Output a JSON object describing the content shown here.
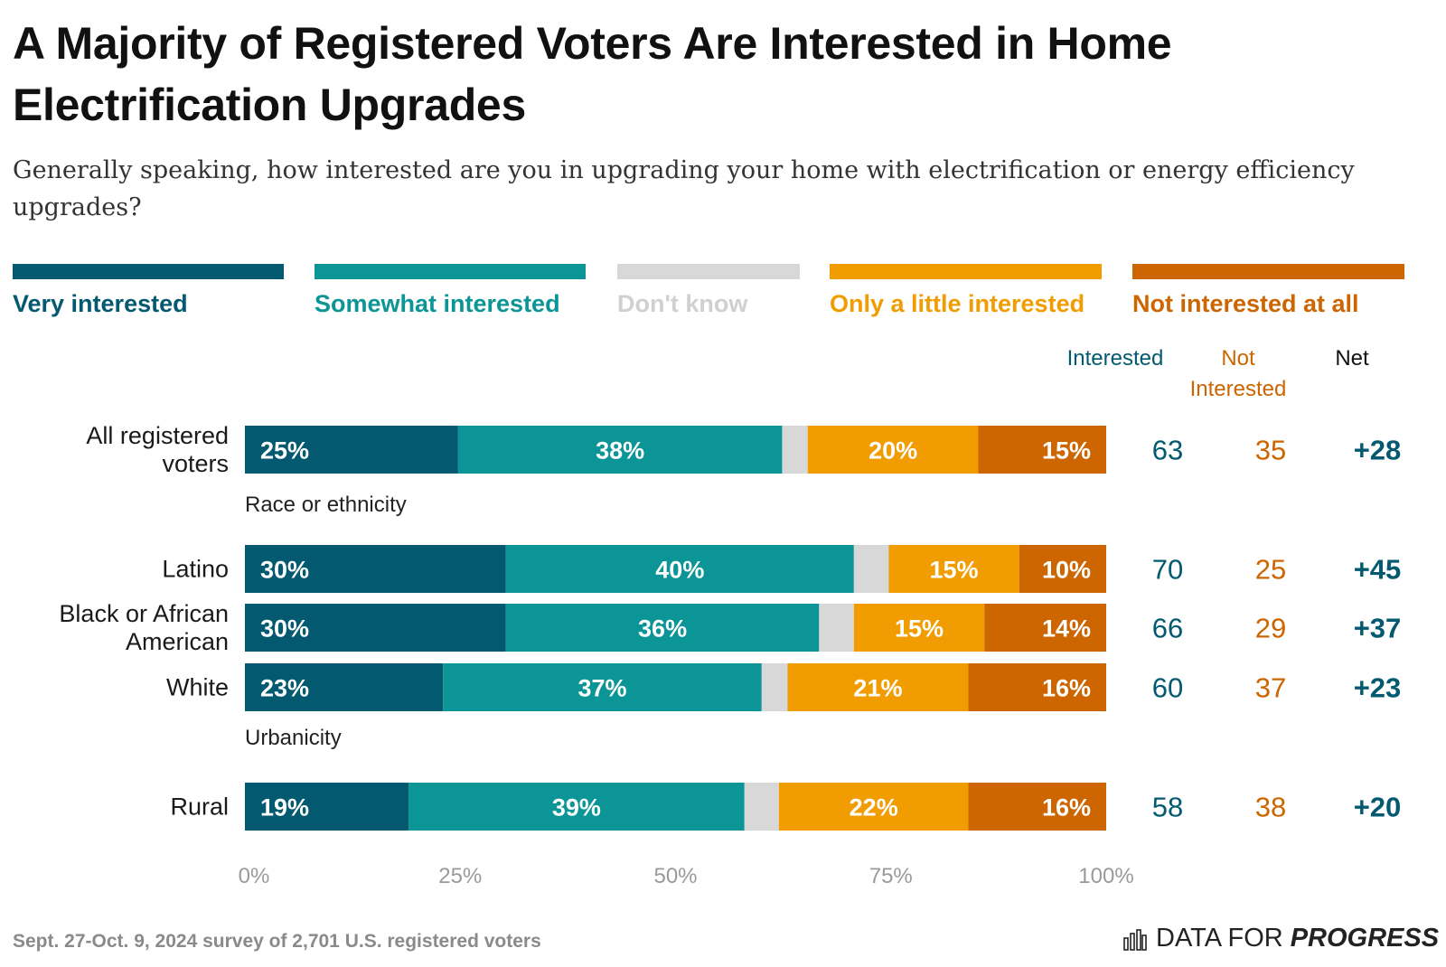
{
  "title": "A Majority of Registered Voters Are Interested in Home Electrification Upgrades",
  "subtitle": "Generally speaking, how interested are you in upgrading your home with electrification or energy efficiency upgrades?",
  "legend": [
    {
      "label": "Very interested",
      "color": "#035a70"
    },
    {
      "label": "Somewhat interested",
      "color": "#0c9596"
    },
    {
      "label": "Don't know",
      "color": "#d8d8d8"
    },
    {
      "label": "Only a little interested",
      "color": "#f19c00"
    },
    {
      "label": "Not interested at all",
      "color": "#cd6500"
    }
  ],
  "columns": {
    "interested": "Interested",
    "not_interested": "Not Interested",
    "net": "Net"
  },
  "groups": {
    "race": "Race or ethnicity",
    "urbanicity": "Urbanicity"
  },
  "footer": "Sept. 27-Oct. 9, 2024 survey of 2,701 U.S. registered voters",
  "brand": {
    "light": "DATA FOR",
    "strong": "PROGRESS",
    "icon": "bar-chart-logo-icon"
  },
  "chart_data": {
    "type": "bar",
    "orientation": "horizontal-stacked-100",
    "categories": [
      "All registered voters",
      "Latino",
      "Black or African American",
      "White",
      "Rural"
    ],
    "series": [
      {
        "name": "Very interested",
        "values": [
          25,
          30,
          30,
          23,
          19
        ],
        "labels": [
          "25%",
          "30%",
          "30%",
          "23%",
          "19%"
        ]
      },
      {
        "name": "Somewhat interested",
        "values": [
          38,
          40,
          36,
          37,
          39
        ],
        "labels": [
          "38%",
          "40%",
          "36%",
          "37%",
          "39%"
        ]
      },
      {
        "name": "Don't know",
        "values": [
          3,
          4,
          4,
          3,
          4
        ],
        "labels": [
          "",
          "",
          "",
          "",
          ""
        ]
      },
      {
        "name": "Only a little interested",
        "values": [
          20,
          15,
          15,
          21,
          22
        ],
        "labels": [
          "20%",
          "15%",
          "15%",
          "21%",
          "22%"
        ]
      },
      {
        "name": "Not interested at all",
        "values": [
          15,
          10,
          14,
          16,
          16
        ],
        "labels": [
          "15%",
          "10%",
          "14%",
          "16%",
          "16%"
        ]
      }
    ],
    "interested": [
      "63",
      "70",
      "66",
      "60",
      "58"
    ],
    "not_interested": [
      "35",
      "25",
      "29",
      "37",
      "38"
    ],
    "net": [
      "+28",
      "+45",
      "+37",
      "+23",
      "+20"
    ],
    "xlim": [
      0,
      100
    ],
    "xticks": [
      "0%",
      "25%",
      "50%",
      "75%",
      "100%"
    ],
    "grid": false
  }
}
